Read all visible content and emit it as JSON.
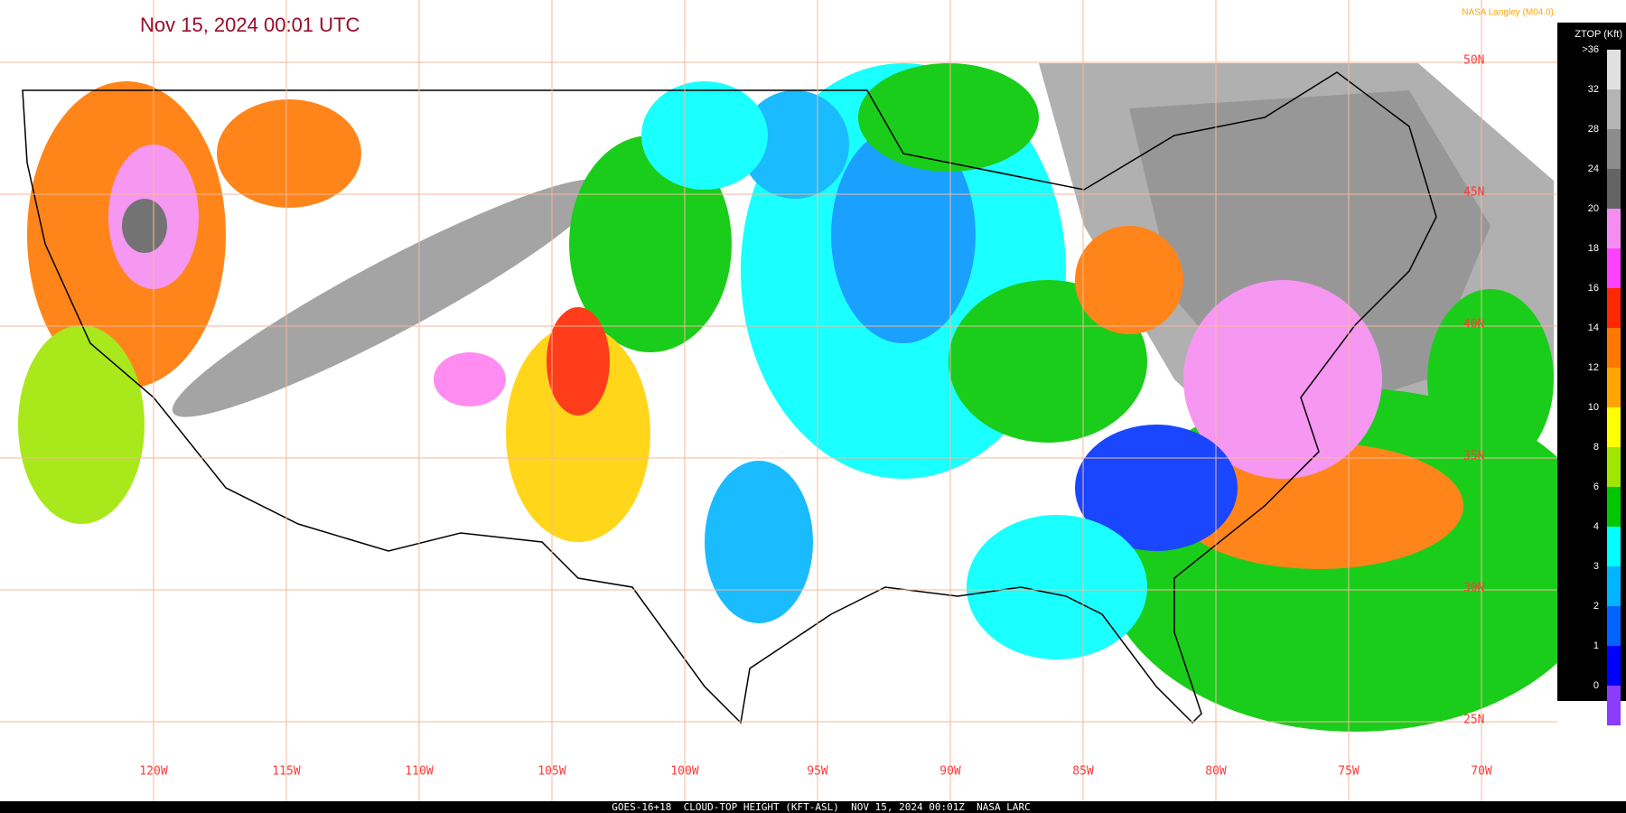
{
  "header": {
    "title": "Nov 15, 2024 00:01 UTC",
    "credit": "NASA Langley (M04.0)"
  },
  "colorbar": {
    "title": "ZTOP (Kft)",
    "items": [
      {
        "label": ">36",
        "color": "#e0e0e0"
      },
      {
        "label": "32",
        "color": "#b4b4b4"
      },
      {
        "label": "28",
        "color": "#8c8c8c"
      },
      {
        "label": "24",
        "color": "#646464"
      },
      {
        "label": "20",
        "color": "#f58cf0"
      },
      {
        "label": "18",
        "color": "#ff40ff"
      },
      {
        "label": "16",
        "color": "#ff2800"
      },
      {
        "label": "14",
        "color": "#ff7800"
      },
      {
        "label": "12",
        "color": "#ffa500"
      },
      {
        "label": "10",
        "color": "#ffff00"
      },
      {
        "label": "8",
        "color": "#a0e600"
      },
      {
        "label": "6",
        "color": "#00c800"
      },
      {
        "label": "4",
        "color": "#00ffff"
      },
      {
        "label": "3",
        "color": "#00b4ff"
      },
      {
        "label": "2",
        "color": "#0064ff"
      },
      {
        "label": "1",
        "color": "#0000ff"
      },
      {
        "label": "0",
        "color": "#8c3cff"
      }
    ]
  },
  "longitude_labels": [
    "120W",
    "115W",
    "110W",
    "105W",
    "100W",
    "95W",
    "90W",
    "85W",
    "80W",
    "75W",
    "70W"
  ],
  "latitude_labels": [
    "50N",
    "45N",
    "40N",
    "35N",
    "30N",
    "25N"
  ],
  "footer": "GOES-16+18  CLOUD-TOP HEIGHT (KFT-ASL)  NOV 15, 2024 00:01Z  NASA LARC"
}
